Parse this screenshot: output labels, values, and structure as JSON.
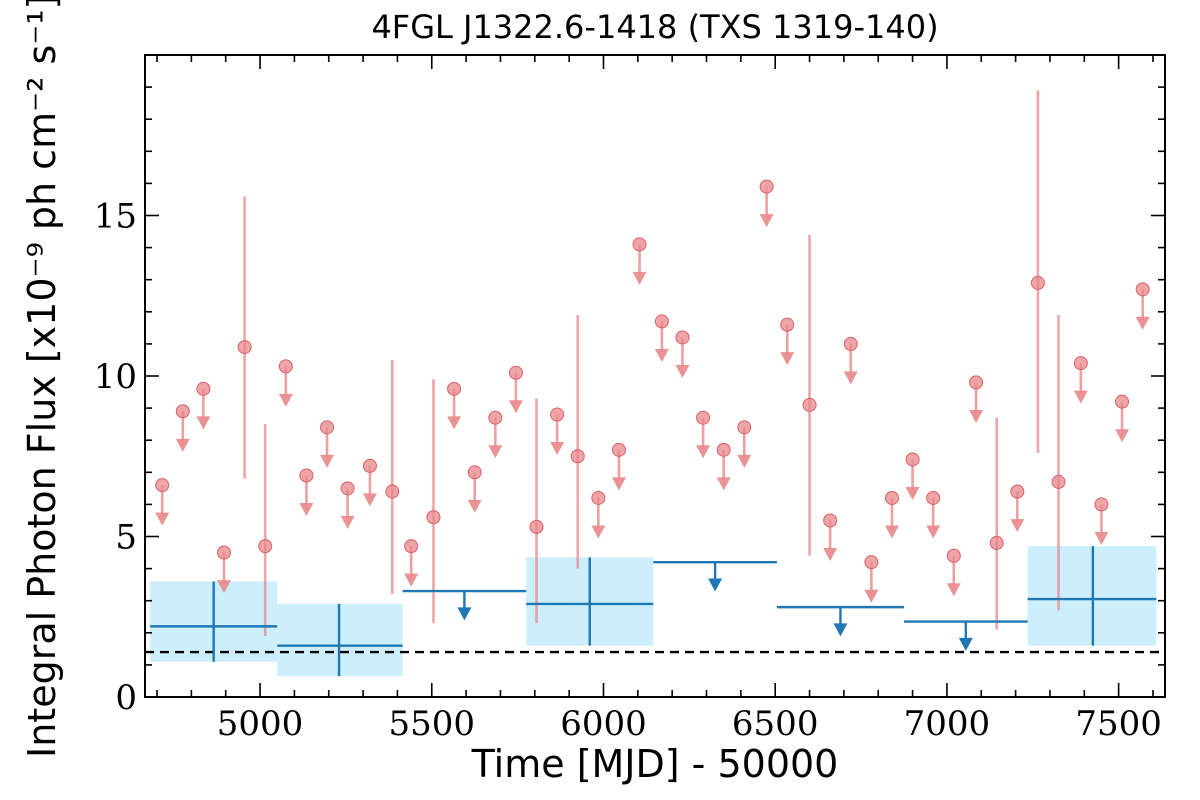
{
  "chart_data": {
    "type": "scatter",
    "title": "4FGL J1322.6-1418 (TXS 1319-140)",
    "xlabel": "Time [MJD] - 50000",
    "ylabel": "Integral Photon Flux [x10⁻⁹ ph cm⁻² s⁻¹]",
    "xlim": [
      4665,
      7635
    ],
    "ylim": [
      0,
      20
    ],
    "xticks": [
      5000,
      5500,
      6000,
      6500,
      7000,
      7500
    ],
    "yticks": [
      0,
      5,
      10,
      15
    ],
    "xtick_labels": [
      "5000",
      "5500",
      "6000",
      "6500",
      "7000",
      "7500"
    ],
    "ytick_labels": [
      "0",
      "5",
      "10",
      "15"
    ],
    "baseline_flux": 1.4,
    "colors": {
      "short_bins": "#e8878a",
      "long_bins": "#1f77b4",
      "long_bin_band": "#cdeefc",
      "baseline": "#000000"
    },
    "series": [
      {
        "markers": "short-bin",
        "detections": [
          {
            "x": 4955,
            "y": 10.9,
            "ylo": 6.8,
            "yhi": 15.6
          },
          {
            "x": 5015,
            "y": 4.7,
            "ylo": 1.9,
            "yhi": 8.5
          },
          {
            "x": 5385,
            "y": 6.4,
            "ylo": 3.2,
            "yhi": 10.5
          },
          {
            "x": 5505,
            "y": 5.6,
            "ylo": 2.3,
            "yhi": 9.9
          },
          {
            "x": 5805,
            "y": 5.3,
            "ylo": 2.3,
            "yhi": 9.3
          },
          {
            "x": 5925,
            "y": 7.5,
            "ylo": 4.0,
            "yhi": 11.9
          },
          {
            "x": 6600,
            "y": 9.1,
            "ylo": 4.4,
            "yhi": 14.4
          },
          {
            "x": 7145,
            "y": 4.8,
            "ylo": 2.1,
            "yhi": 8.7
          },
          {
            "x": 7265,
            "y": 12.9,
            "ylo": 7.6,
            "yhi": 18.9
          },
          {
            "x": 7325,
            "y": 6.7,
            "ylo": 2.7,
            "yhi": 11.9
          }
        ],
        "upper_limits": [
          {
            "x": 4715,
            "y": 6.6
          },
          {
            "x": 4775,
            "y": 8.9
          },
          {
            "x": 4835,
            "y": 9.6
          },
          {
            "x": 4895,
            "y": 4.5
          },
          {
            "x": 5075,
            "y": 10.3
          },
          {
            "x": 5135,
            "y": 6.9
          },
          {
            "x": 5195,
            "y": 8.4
          },
          {
            "x": 5255,
            "y": 6.5
          },
          {
            "x": 5320,
            "y": 7.2
          },
          {
            "x": 5440,
            "y": 4.7
          },
          {
            "x": 5565,
            "y": 9.6
          },
          {
            "x": 5625,
            "y": 7.0
          },
          {
            "x": 5685,
            "y": 8.7
          },
          {
            "x": 5745,
            "y": 10.1
          },
          {
            "x": 5865,
            "y": 8.8
          },
          {
            "x": 5985,
            "y": 6.2
          },
          {
            "x": 6045,
            "y": 7.7
          },
          {
            "x": 6105,
            "y": 14.1
          },
          {
            "x": 6170,
            "y": 11.7
          },
          {
            "x": 6230,
            "y": 11.2
          },
          {
            "x": 6290,
            "y": 8.7
          },
          {
            "x": 6350,
            "y": 7.7
          },
          {
            "x": 6410,
            "y": 8.4
          },
          {
            "x": 6475,
            "y": 15.9
          },
          {
            "x": 6535,
            "y": 11.6
          },
          {
            "x": 6660,
            "y": 5.5
          },
          {
            "x": 6720,
            "y": 11.0
          },
          {
            "x": 6780,
            "y": 4.2
          },
          {
            "x": 6840,
            "y": 6.2
          },
          {
            "x": 6900,
            "y": 7.4
          },
          {
            "x": 6960,
            "y": 6.2
          },
          {
            "x": 7020,
            "y": 4.4
          },
          {
            "x": 7085,
            "y": 9.8
          },
          {
            "x": 7205,
            "y": 6.4
          },
          {
            "x": 7390,
            "y": 10.4
          },
          {
            "x": 7450,
            "y": 6.0
          },
          {
            "x": 7510,
            "y": 9.2
          },
          {
            "x": 7570,
            "y": 12.7
          }
        ]
      },
      {
        "markers": "long-bin",
        "detections": [
          {
            "x": 4865,
            "xlo": 4680,
            "xhi": 5050,
            "y": 2.2,
            "ylo": 1.1,
            "yhi": 3.6
          },
          {
            "x": 5230,
            "xlo": 5050,
            "xhi": 5415,
            "y": 1.6,
            "ylo": 0.65,
            "yhi": 2.9
          },
          {
            "x": 5960,
            "xlo": 5775,
            "xhi": 6145,
            "y": 2.9,
            "ylo": 1.6,
            "yhi": 4.35
          },
          {
            "x": 7425,
            "xlo": 7235,
            "xhi": 7610,
            "y": 3.05,
            "ylo": 1.6,
            "yhi": 4.7
          }
        ],
        "upper_limits": [
          {
            "x": 5595,
            "xlo": 5415,
            "xhi": 5775,
            "y": 3.3
          },
          {
            "x": 6325,
            "xlo": 6145,
            "xhi": 6505,
            "y": 4.2
          },
          {
            "x": 6690,
            "xlo": 6505,
            "xhi": 6875,
            "y": 2.8
          },
          {
            "x": 7055,
            "xlo": 6875,
            "xhi": 7235,
            "y": 2.35
          }
        ]
      }
    ]
  }
}
